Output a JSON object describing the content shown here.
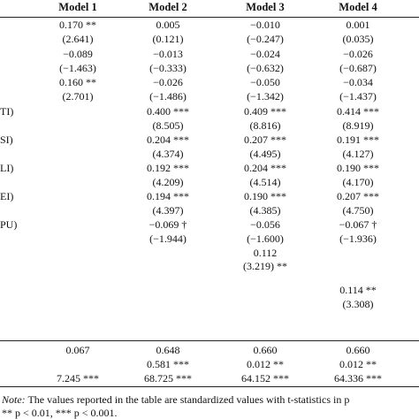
{
  "table": {
    "header": [
      "Model 1",
      "Model 2",
      "Model 3",
      "Model 4"
    ],
    "rows": [
      {
        "label": null,
        "cells": [
          "0.170 **",
          "0.005",
          "−0.010",
          "0.001"
        ]
      },
      {
        "label": null,
        "cells": [
          "(2.641)",
          "(0.121)",
          "(−0.247)",
          "(0.035)"
        ]
      },
      {
        "label": null,
        "cells": [
          "−0.089",
          "−0.013",
          "−0.024",
          "−0.026"
        ]
      },
      {
        "label": null,
        "cells": [
          "(−1.463)",
          "(−0.333)",
          "(−0.632)",
          "(−0.687)"
        ]
      },
      {
        "label": null,
        "cells": [
          "0.160 **",
          "−0.026",
          "−0.050",
          "−0.034"
        ]
      },
      {
        "label": null,
        "cells": [
          "(2.701)",
          "(−1.486)",
          "(−1.342)",
          "(−1.437)"
        ]
      },
      {
        "label": "TI)",
        "cells": [
          null,
          "0.400 ***",
          "0.409 ***",
          "0.414 ***"
        ]
      },
      {
        "label": null,
        "cells": [
          null,
          "(8.505)",
          "(8.816)",
          "(8.919)"
        ]
      },
      {
        "label": "SI)",
        "cells": [
          null,
          "0.204 ***",
          "0.207 ***",
          "0.191 ***"
        ]
      },
      {
        "label": null,
        "cells": [
          null,
          "(4.374)",
          "(4.495)",
          "(4.127)"
        ]
      },
      {
        "label": "LI)",
        "cells": [
          null,
          "0.192 ***",
          "0.204 ***",
          "0.190 ***"
        ]
      },
      {
        "label": null,
        "cells": [
          null,
          "(4.209)",
          "(4.514)",
          "(4.170)"
        ]
      },
      {
        "label": "EI)",
        "cells": [
          null,
          "0.194 ***",
          "0.190 ***",
          "0.207 ***"
        ]
      },
      {
        "label": null,
        "cells": [
          null,
          "(4.397)",
          "(4.385)",
          "(4.750)"
        ]
      },
      {
        "label": "PU)",
        "cells": [
          null,
          "−0.069 †",
          "−0.056",
          "−0.067 †"
        ]
      },
      {
        "label": null,
        "cells": [
          null,
          "(−1.944)",
          "(−1.600)",
          "(−1.936)"
        ]
      },
      {
        "label": null,
        "cells": [
          null,
          null,
          "0.112",
          null
        ]
      },
      {
        "label": null,
        "cells": [
          null,
          null,
          "(3.219) **",
          null
        ]
      },
      {
        "label": null,
        "cells": [
          null,
          null,
          null,
          "0.114 **"
        ]
      },
      {
        "label": null,
        "cells": [
          null,
          null,
          null,
          "(3.308)"
        ]
      },
      {
        "label": null,
        "cells": [
          "0.067",
          "0.648",
          "0.660",
          "0.660"
        ]
      },
      {
        "label": null,
        "cells": [
          null,
          "0.581 ***",
          "0.012 **",
          "0.012 **"
        ]
      },
      {
        "label": null,
        "cells": [
          "7.245 ***",
          "68.725 ***",
          "64.152 ***",
          "64.336 ***"
        ]
      }
    ]
  },
  "note": {
    "lead": "Note:",
    "text": "The values reported in the table are standardized values with t-statistics in p",
    "significance": "** p < 0.01, *** p < 0.001."
  }
}
